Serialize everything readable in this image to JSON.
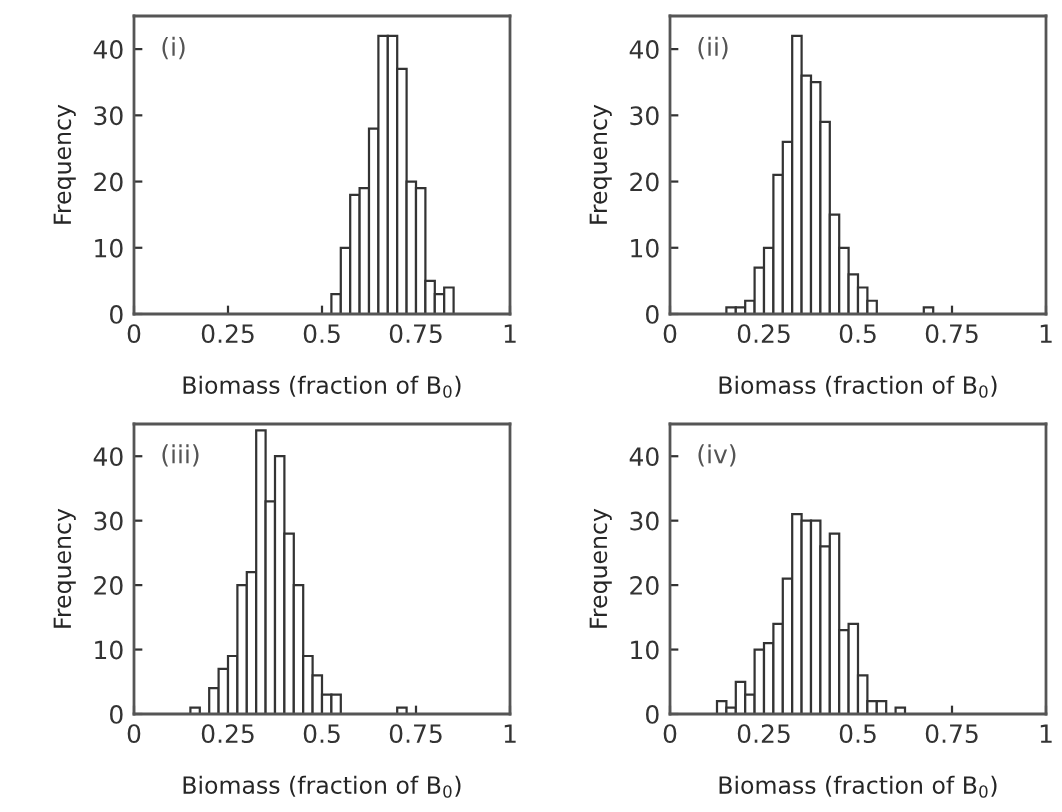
{
  "chart_data": [
    {
      "type": "histogram",
      "xlabel": "Biomass (fraction of B$_{0}$)",
      "ylabel": "Frequency",
      "annotations": [
        "(i)"
      ],
      "color": "#ffffff",
      "bins": [
        0.525,
        0.55,
        0.575,
        0.6,
        0.625,
        0.65,
        0.675,
        0.7,
        0.725,
        0.75,
        0.775,
        0.8,
        0.825,
        0.85
      ],
      "values": [
        3,
        10,
        18,
        19,
        28,
        42,
        42,
        37,
        20,
        19,
        5,
        3,
        4
      ],
      "xlim": [
        0,
        1
      ],
      "xticks": [
        0,
        0.25,
        0.5,
        0.75,
        1
      ],
      "ylim": [
        0,
        45
      ],
      "yticks": [
        0,
        10,
        20,
        30,
        40
      ],
      "grid": false
    },
    {
      "type": "histogram",
      "xlabel": "Biomass (fraction of B$_{0}$)",
      "ylabel": "Frequency",
      "annotations": [
        "(ii)"
      ],
      "color": "#ffffff",
      "bins": [
        0.15,
        0.175,
        0.2,
        0.225,
        0.25,
        0.275,
        0.3,
        0.325,
        0.35,
        0.375,
        0.4,
        0.425,
        0.45,
        0.475,
        0.5,
        0.525,
        0.55,
        0.575,
        0.6,
        0.625,
        0.65,
        0.675,
        0.7
      ],
      "values": [
        1,
        1,
        2,
        7,
        10,
        21,
        26,
        42,
        36,
        35,
        29,
        15,
        10,
        6,
        4,
        2,
        0,
        0,
        0,
        0,
        0,
        1
      ],
      "xlim": [
        0,
        1
      ],
      "xticks": [
        0,
        0.25,
        0.5,
        0.75,
        1
      ],
      "ylim": [
        0,
        45
      ],
      "yticks": [
        0,
        10,
        20,
        30,
        40
      ],
      "grid": false
    },
    {
      "type": "histogram",
      "xlabel": "Biomass (fraction of B$_{0}$)",
      "ylabel": "Frequency",
      "annotations": [
        "(iii)"
      ],
      "color": "#ffffff",
      "bins": [
        0.15,
        0.175,
        0.2,
        0.225,
        0.25,
        0.275,
        0.3,
        0.325,
        0.35,
        0.375,
        0.4,
        0.425,
        0.45,
        0.475,
        0.5,
        0.525,
        0.55,
        0.575,
        0.6,
        0.625,
        0.65,
        0.675,
        0.7,
        0.725
      ],
      "values": [
        1,
        0,
        4,
        7,
        9,
        20,
        22,
        44,
        33,
        40,
        28,
        20,
        9,
        6,
        3,
        3,
        0,
        0,
        0,
        0,
        0,
        0,
        1
      ],
      "xlim": [
        0,
        1
      ],
      "xticks": [
        0,
        0.25,
        0.5,
        0.75,
        1
      ],
      "ylim": [
        0,
        45
      ],
      "yticks": [
        0,
        10,
        20,
        30,
        40
      ],
      "grid": false
    },
    {
      "type": "histogram",
      "xlabel": "Biomass (fraction of B$_{0}$)",
      "ylabel": "Frequency",
      "annotations": [
        "(iv)"
      ],
      "color": "#ffffff",
      "bins": [
        0.125,
        0.15,
        0.175,
        0.2,
        0.225,
        0.25,
        0.275,
        0.3,
        0.325,
        0.35,
        0.375,
        0.4,
        0.425,
        0.45,
        0.475,
        0.5,
        0.525,
        0.55,
        0.575,
        0.6,
        0.625
      ],
      "values": [
        2,
        1,
        5,
        3,
        10,
        11,
        14,
        21,
        31,
        30,
        30,
        26,
        28,
        13,
        14,
        6,
        2,
        2,
        0,
        1
      ],
      "xlim": [
        0,
        1
      ],
      "xticks": [
        0,
        0.25,
        0.5,
        0.75,
        1
      ],
      "ylim": [
        0,
        45
      ],
      "yticks": [
        0,
        10,
        20,
        30,
        40
      ],
      "grid": false
    }
  ]
}
